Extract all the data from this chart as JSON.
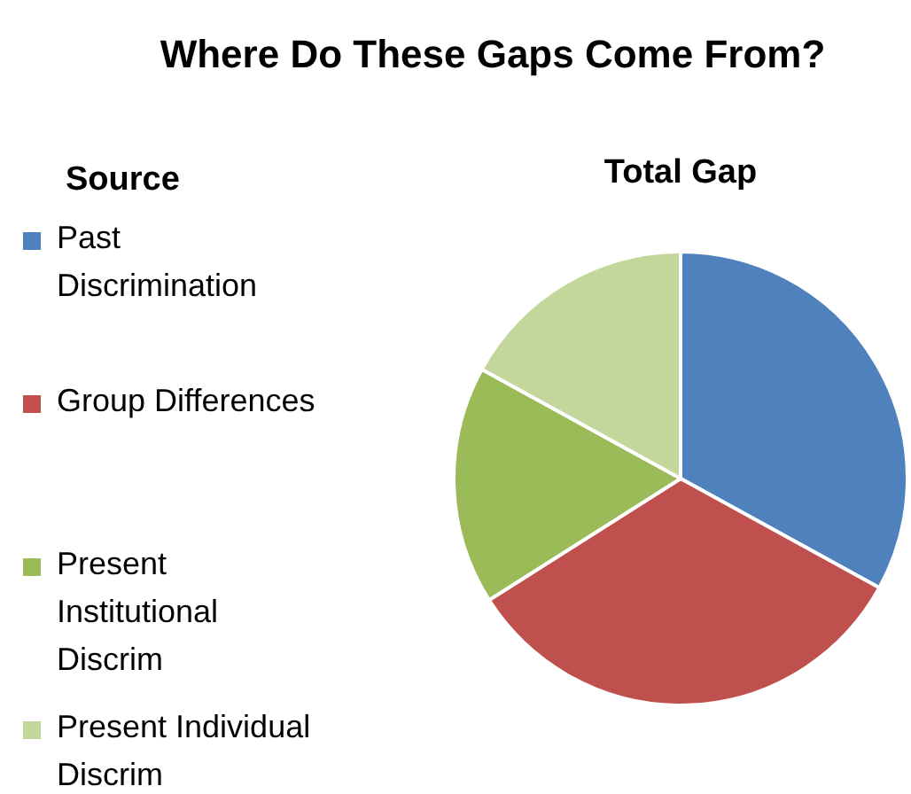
{
  "chart_data": {
    "type": "pie",
    "title": "Where Do These Gaps Come From?",
    "subtitle": "Total Gap",
    "legend_title": "Source",
    "legend": "left",
    "categories": [
      "Past Discrimination",
      "Group Differences",
      "Present Institutional Discrim",
      "Present Individual Discrim"
    ],
    "values": [
      33,
      33,
      17,
      17
    ],
    "colors": [
      "#4f81bd",
      "#c0504d",
      "#9bbb59",
      "#c3d69b"
    ]
  }
}
